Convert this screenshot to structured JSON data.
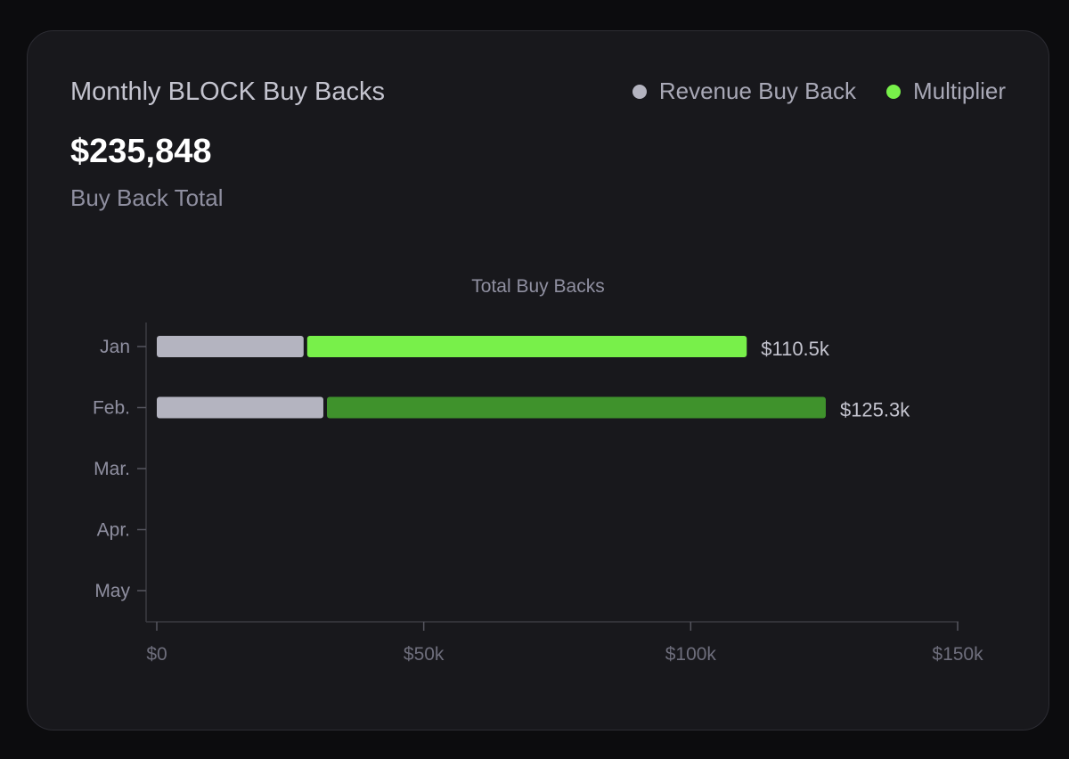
{
  "card": {
    "title": "Monthly BLOCK Buy Backs",
    "total_value": "$235,848",
    "total_label": "Buy Back Total"
  },
  "legend": [
    {
      "label": "Revenue Buy Back",
      "color": "#b4b4c0"
    },
    {
      "label": "Multiplier",
      "color": "#78f04a"
    }
  ],
  "chart_data": {
    "type": "bar",
    "orientation": "horizontal",
    "stacked": true,
    "title": "Total Buy Backs",
    "categories": [
      "Jan",
      "Feb.",
      "Mar.",
      "Apr.",
      "May"
    ],
    "series": [
      {
        "name": "Revenue Buy Back",
        "values": [
          27500,
          31200,
          null,
          null,
          null
        ],
        "colors": [
          "#b4b4c0",
          "#b4b4c0"
        ]
      },
      {
        "name": "Multiplier",
        "values": [
          83000,
          94100,
          null,
          null,
          null
        ],
        "colors": [
          "#78f04a",
          "#3f922c"
        ]
      }
    ],
    "totals": [
      110500,
      125300,
      null,
      null,
      null
    ],
    "data_labels": [
      "$110.5k",
      "$125.3k",
      "",
      "",
      ""
    ],
    "x_ticks": [
      0,
      50000,
      100000,
      150000
    ],
    "x_tick_labels": [
      "$0",
      "$50k",
      "$100k",
      "$150k"
    ],
    "xlim": [
      0,
      150000
    ],
    "grid": false,
    "legend_position": "top-right"
  }
}
